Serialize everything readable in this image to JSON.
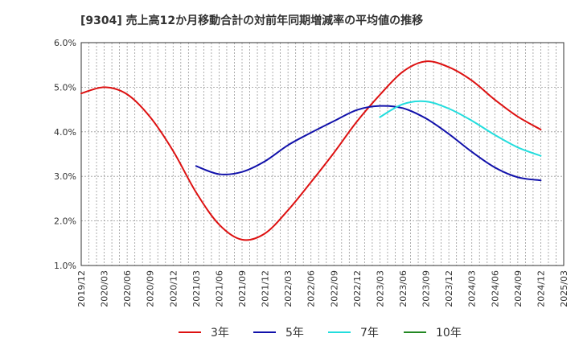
{
  "chart_data": {
    "type": "line",
    "title": "[9304]  売上高12か月移動合計の対前年同期増減率の平均値の推移",
    "xlabel": "",
    "ylabel": "",
    "ylim": [
      0.01,
      0.06
    ],
    "y_ticks": [
      "1.0%",
      "2.0%",
      "3.0%",
      "4.0%",
      "5.0%",
      "6.0%"
    ],
    "x_ticks": [
      "2019/12",
      "2020/03",
      "2020/06",
      "2020/09",
      "2020/12",
      "2021/03",
      "2021/06",
      "2021/09",
      "2021/12",
      "2022/03",
      "2022/06",
      "2022/09",
      "2022/12",
      "2023/03",
      "2023/06",
      "2023/09",
      "2023/12",
      "2024/03",
      "2024/06",
      "2024/09",
      "2024/12",
      "2025/03"
    ],
    "grid": true,
    "legend_position": "bottom",
    "series": [
      {
        "name": "3年",
        "color": "#dd1111",
        "points": [
          [
            "2019/12",
            0.0486
          ],
          [
            "2020/03",
            0.05
          ],
          [
            "2020/06",
            0.0484
          ],
          [
            "2020/09",
            0.0433
          ],
          [
            "2020/12",
            0.0357
          ],
          [
            "2021/03",
            0.0264
          ],
          [
            "2021/06",
            0.0192
          ],
          [
            "2021/09",
            0.0158
          ],
          [
            "2021/12",
            0.0172
          ],
          [
            "2022/03",
            0.0224
          ],
          [
            "2022/06",
            0.0287
          ],
          [
            "2022/09",
            0.0353
          ],
          [
            "2022/12",
            0.0423
          ],
          [
            "2023/03",
            0.0483
          ],
          [
            "2023/06",
            0.0535
          ],
          [
            "2023/09",
            0.0558
          ],
          [
            "2023/12",
            0.0545
          ],
          [
            "2024/03",
            0.0515
          ],
          [
            "2024/06",
            0.0472
          ],
          [
            "2024/09",
            0.0434
          ],
          [
            "2024/12",
            0.0405
          ]
        ]
      },
      {
        "name": "5年",
        "color": "#1111aa",
        "points": [
          [
            "2021/03",
            0.0323
          ],
          [
            "2021/06",
            0.0305
          ],
          [
            "2021/09",
            0.031
          ],
          [
            "2021/12",
            0.0334
          ],
          [
            "2022/03",
            0.037
          ],
          [
            "2022/06",
            0.0398
          ],
          [
            "2022/09",
            0.0424
          ],
          [
            "2022/12",
            0.0449
          ],
          [
            "2023/03",
            0.0458
          ],
          [
            "2023/06",
            0.0453
          ],
          [
            "2023/09",
            0.043
          ],
          [
            "2023/12",
            0.0395
          ],
          [
            "2024/03",
            0.0355
          ],
          [
            "2024/06",
            0.032
          ],
          [
            "2024/09",
            0.0298
          ],
          [
            "2024/12",
            0.0291
          ]
        ]
      },
      {
        "name": "7年",
        "color": "#22dddd",
        "points": [
          [
            "2023/03",
            0.0433
          ],
          [
            "2023/06",
            0.0462
          ],
          [
            "2023/09",
            0.0468
          ],
          [
            "2023/12",
            0.0452
          ],
          [
            "2024/03",
            0.0425
          ],
          [
            "2024/06",
            0.0393
          ],
          [
            "2024/09",
            0.0365
          ],
          [
            "2024/12",
            0.0346
          ]
        ]
      },
      {
        "name": "10年",
        "color": "#228822",
        "points": []
      }
    ]
  }
}
